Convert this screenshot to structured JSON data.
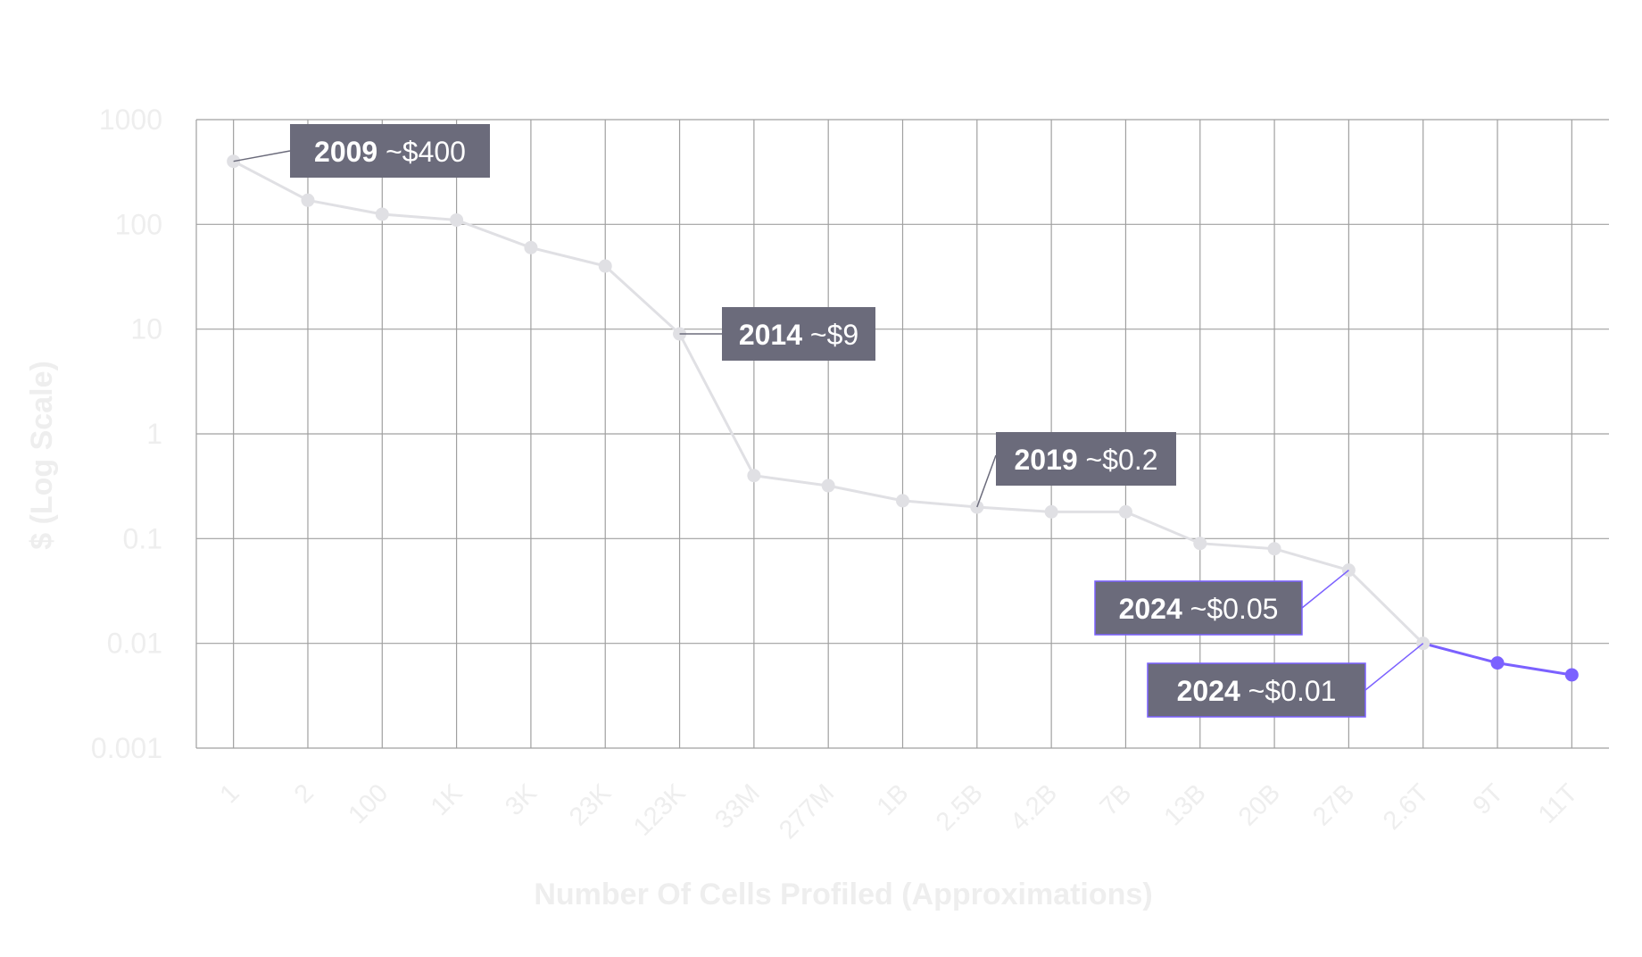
{
  "chart_data": {
    "type": "line",
    "xlabel": "Number Of Cells Profiled (Approximations)",
    "ylabel": "$ (Log Scale)",
    "yscale": "log",
    "ylim": [
      0.001,
      1000
    ],
    "yticks": [
      "1000",
      "100",
      "10",
      "1",
      "0.1",
      "0.01",
      "0.001"
    ],
    "categories": [
      "1",
      "2",
      "100",
      "1K",
      "3K",
      "23K",
      "123K",
      "33M",
      "277M",
      "1B",
      "2.5B",
      "4.2B",
      "7B",
      "13B",
      "20B",
      "27B",
      "2.6T",
      "9T",
      "11T"
    ],
    "series": [
      {
        "values": [
          400,
          170,
          125,
          110,
          60,
          40,
          9,
          0.4,
          0.32,
          0.23,
          0.2,
          0.18,
          0.18,
          0.09,
          0.08,
          0.05,
          0.01,
          0.0065,
          0.005
        ]
      }
    ],
    "highlight_from_index": 16,
    "grid": true,
    "colors": {
      "line": "#e0e0e4",
      "highlight": "#7b61ff",
      "grid": "#a0a0a0",
      "callout_bg": "#6b6b7b",
      "text": "#eeeeee"
    },
    "annotations": [
      {
        "year": "2009",
        "value": "~$400",
        "point_index": 0
      },
      {
        "year": "2014",
        "value": "~$9",
        "point_index": 6
      },
      {
        "year": "2019",
        "value": "~$0.2",
        "point_index": 10
      },
      {
        "year": "2024",
        "value": "~$0.05",
        "point_index": 15
      },
      {
        "year": "2024",
        "value": "~$0.01",
        "point_index": 16
      }
    ]
  }
}
